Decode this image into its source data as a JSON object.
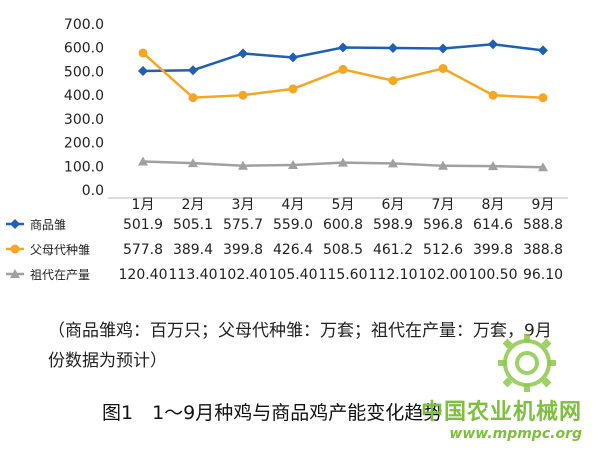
{
  "chart_data": {
    "type": "line",
    "categories": [
      "1月",
      "2月",
      "3月",
      "4月",
      "5月",
      "6月",
      "7月",
      "8月",
      "9月"
    ],
    "ylim": [
      0,
      700
    ],
    "yticks": [
      "0.0",
      "100.0",
      "200.0",
      "300.0",
      "400.0",
      "500.0",
      "600.0",
      "700.0"
    ],
    "series": [
      {
        "name": "商品雏",
        "color": "#1f5fb4",
        "marker": "diamond",
        "values": [
          501.9,
          505.1,
          575.7,
          559.0,
          600.8,
          598.9,
          596.8,
          614.6,
          588.8
        ],
        "labels": [
          "501.9",
          "505.1",
          "575.7",
          "559.0",
          "600.8",
          "598.9",
          "596.8",
          "614.6",
          "588.8"
        ]
      },
      {
        "name": "父母代种雏",
        "color": "#f5a623",
        "marker": "circle",
        "values": [
          577.8,
          389.4,
          399.8,
          426.4,
          508.5,
          461.2,
          512.6,
          399.8,
          388.8
        ],
        "labels": [
          "577.8",
          "389.4",
          "399.8",
          "426.4",
          "508.5",
          "461.2",
          "512.6",
          "399.8",
          "388.8"
        ]
      },
      {
        "name": "祖代在产量",
        "color": "#a0a0a0",
        "marker": "triangle",
        "values": [
          120.4,
          113.4,
          102.4,
          105.4,
          115.6,
          112.1,
          102.0,
          100.5,
          96.1
        ],
        "labels": [
          "120.40",
          "113.40",
          "102.40",
          "105.40",
          "115.60",
          "112.10",
          "102.00",
          "100.50",
          "96.10"
        ]
      }
    ],
    "grid": false,
    "legend": "data-table-below"
  },
  "note": "（商品雏鸡：百万只；父母代种雏：万套；祖代在产量：万套，9月份数据为预计）",
  "caption": "图1　1～9月种鸡与商品鸡产能变化趋势",
  "watermark": {
    "title": "中国农业机械网",
    "url": "www.mpmpc.org",
    "color": "#7fbf3f"
  }
}
